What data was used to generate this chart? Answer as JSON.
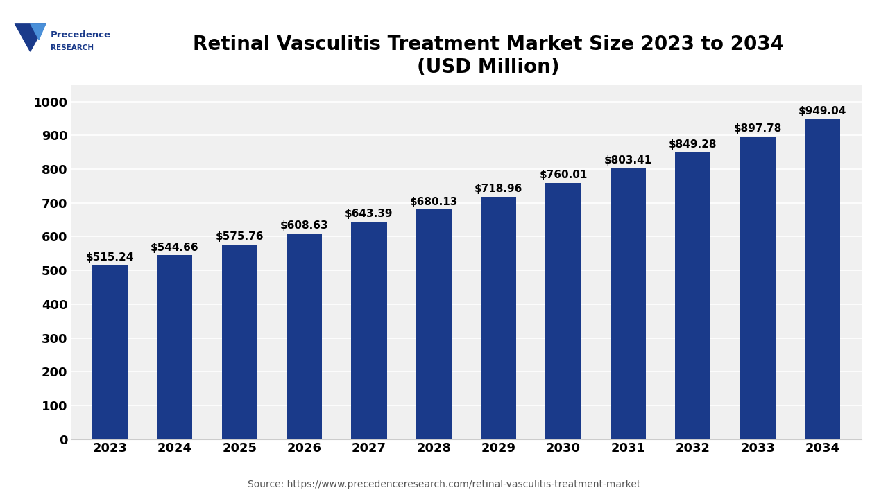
{
  "title_line1": "Retinal Vasculitis Treatment Market Size 2023 to 2034",
  "title_line2": "(USD Million)",
  "source_text": "Source: https://www.precedenceresearch.com/retinal-vasculitis-treatment-market",
  "years": [
    2023,
    2024,
    2025,
    2026,
    2027,
    2028,
    2029,
    2030,
    2031,
    2032,
    2033,
    2034
  ],
  "values": [
    515.24,
    544.66,
    575.76,
    608.63,
    643.39,
    680.13,
    718.96,
    760.01,
    803.41,
    849.28,
    897.78,
    949.04
  ],
  "bar_color": "#1a3a8a",
  "background_color": "#ffffff",
  "plot_bg_color": "#f0f0f0",
  "ylim": [
    0,
    1050
  ],
  "yticks": [
    0,
    100,
    200,
    300,
    400,
    500,
    600,
    700,
    800,
    900,
    1000
  ],
  "title_fontsize": 20,
  "tick_fontsize": 13,
  "source_fontsize": 10,
  "bar_label_fontsize": 11,
  "logo_text_precedence": "Precedence",
  "logo_text_research": "RESEARCH"
}
